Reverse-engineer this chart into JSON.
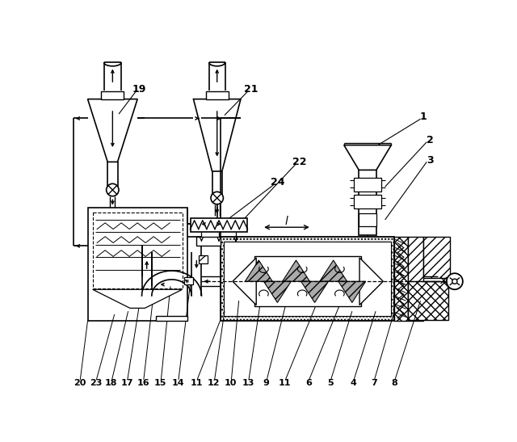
{
  "bg_color": "#ffffff",
  "lc": "#000000",
  "figsize": [
    6.4,
    5.47
  ],
  "dpi": 100
}
